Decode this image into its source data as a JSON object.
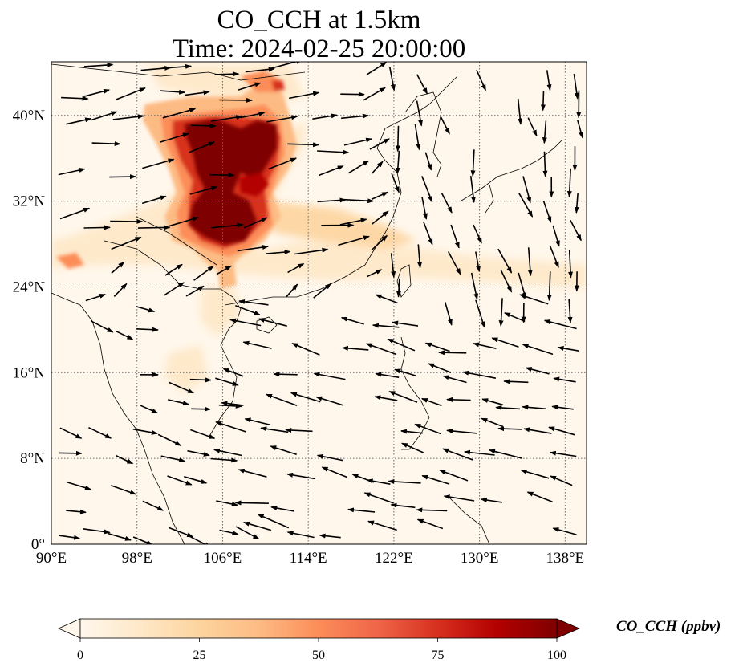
{
  "title": {
    "line1": "CO_CCH at 1.5km",
    "line2": "Time: 2024-02-25 20:00:00"
  },
  "map": {
    "lon_range": [
      90,
      140
    ],
    "lat_range": [
      0,
      45
    ],
    "lon_ticks": [
      90,
      98,
      106,
      114,
      122,
      130,
      138
    ],
    "lat_ticks": [
      0,
      8,
      16,
      24,
      32,
      40
    ],
    "lon_tick_labels": [
      "90°E",
      "98°E",
      "106°E",
      "114°E",
      "122°E",
      "130°E",
      "138°E"
    ],
    "lat_tick_labels": [
      "0°",
      "8°N",
      "16°N",
      "24°N",
      "32°N",
      "40°N"
    ],
    "gridlines": true,
    "wind_vectors": true
  },
  "colorbar": {
    "label": "CO_CCH (ppbv)",
    "range": [
      0,
      100
    ],
    "tick_values": [
      0,
      25,
      50,
      75,
      100
    ],
    "tick_labels": [
      "0",
      "25",
      "50",
      "75",
      "100"
    ],
    "colormap": "OrRd",
    "colors": [
      "#fff7ec",
      "#fee8c8",
      "#fdd49e",
      "#fdbb84",
      "#fc8d59",
      "#ef6548",
      "#d7301f",
      "#b30000",
      "#7f0000"
    ],
    "extend": "both"
  }
}
